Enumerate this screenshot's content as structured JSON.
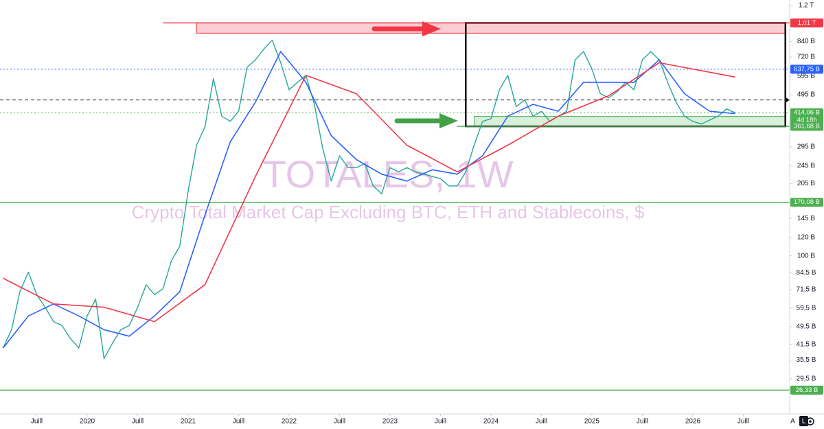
{
  "chart_data": {
    "type": "line",
    "title": "TOTALES, 1W",
    "subtitle": "Crypto Total Market Cap Excluding BTC, ETH and Stablecoins, $",
    "log_scale": true,
    "ylim": [
      20.8,
      1268
    ],
    "yticks": [
      {
        "value": 1200,
        "label": "1,2 T"
      },
      {
        "value": 840,
        "label": "840 B"
      },
      {
        "value": 720,
        "label": "720 B"
      },
      {
        "value": 595,
        "label": "595 B"
      },
      {
        "value": 495,
        "label": "495 B"
      },
      {
        "value": 295,
        "label": "295 B"
      },
      {
        "value": 245,
        "label": "245 B"
      },
      {
        "value": 205,
        "label": "205 B"
      },
      {
        "value": 145,
        "label": "145 B"
      },
      {
        "value": 120,
        "label": "120 B"
      },
      {
        "value": 100,
        "label": "100 B"
      },
      {
        "value": 84.5,
        "label": "84,5 B"
      },
      {
        "value": 71.5,
        "label": "71,5 B"
      },
      {
        "value": 59.5,
        "label": "59,5 B"
      },
      {
        "value": 49.5,
        "label": "49,5 B"
      },
      {
        "value": 41.5,
        "label": "41,5 B"
      },
      {
        "value": 35.5,
        "label": "35,5 B"
      },
      {
        "value": 29.5,
        "label": "29,5 B"
      }
    ],
    "xticks": [
      {
        "value": "2019-07",
        "label": "Juill"
      },
      {
        "value": "2020-01",
        "label": "2020"
      },
      {
        "value": "2020-07",
        "label": "Juill"
      },
      {
        "value": "2021-01",
        "label": "2021"
      },
      {
        "value": "2021-07",
        "label": "Juill"
      },
      {
        "value": "2022-01",
        "label": "2022"
      },
      {
        "value": "2022-07",
        "label": "Juill"
      },
      {
        "value": "2023-01",
        "label": "2023"
      },
      {
        "value": "2023-07",
        "label": "Juill"
      },
      {
        "value": "2024-01",
        "label": "2024"
      },
      {
        "value": "2024-07",
        "label": "Juill"
      },
      {
        "value": "2025-01",
        "label": "2025"
      },
      {
        "value": "2025-07",
        "label": "Juill"
      },
      {
        "value": "2026-01",
        "label": "2026"
      },
      {
        "value": "2026-07",
        "label": "Juill"
      }
    ],
    "series": [
      {
        "color": "#26a69a",
        "width": 1.4,
        "x": [
          "2019-03",
          "2019-04",
          "2019-05",
          "2019-06",
          "2019-07",
          "2019-08",
          "2019-09",
          "2019-10",
          "2019-11",
          "2019-12",
          "2020-01",
          "2020-02",
          "2020-03",
          "2020-04",
          "2020-05",
          "2020-06",
          "2020-07",
          "2020-08",
          "2020-09",
          "2020-10",
          "2020-11",
          "2020-12",
          "2021-01",
          "2021-02",
          "2021-03",
          "2021-04",
          "2021-05",
          "2021-06",
          "2021-07",
          "2021-08",
          "2021-09",
          "2021-10",
          "2021-11",
          "2021-12",
          "2022-01",
          "2022-02",
          "2022-03",
          "2022-04",
          "2022-05",
          "2022-06",
          "2022-07",
          "2022-08",
          "2022-09",
          "2022-10",
          "2022-11",
          "2022-12",
          "2023-01",
          "2023-02",
          "2023-03",
          "2023-04",
          "2023-05",
          "2023-06",
          "2023-07",
          "2023-08",
          "2023-09",
          "2023-10",
          "2023-11",
          "2023-12",
          "2024-01",
          "2024-02",
          "2024-03",
          "2024-04",
          "2024-05",
          "2024-06",
          "2024-07",
          "2024-08",
          "2024-09",
          "2024-10",
          "2024-11",
          "2024-12",
          "2025-01",
          "2025-02",
          "2025-03",
          "2025-04",
          "2025-05",
          "2025-06",
          "2025-07",
          "2025-08",
          "2025-09",
          "2025-10",
          "2025-11",
          "2025-12",
          "2026-01",
          "2026-02",
          "2026-03",
          "2026-04",
          "2026-05",
          "2026-06"
        ],
        "values": [
          40,
          48,
          70,
          85,
          68,
          60,
          52,
          50,
          44,
          40,
          55,
          65,
          36,
          42,
          48,
          50,
          60,
          75,
          68,
          72,
          95,
          110,
          190,
          300,
          360,
          580,
          400,
          380,
          420,
          650,
          700,
          780,
          850,
          680,
          520,
          560,
          600,
          450,
          290,
          210,
          270,
          240,
          240,
          250,
          200,
          185,
          240,
          230,
          240,
          230,
          225,
          220,
          215,
          200,
          200,
          230,
          300,
          380,
          390,
          520,
          600,
          440,
          470,
          400,
          420,
          380,
          400,
          420,
          700,
          760,
          640,
          500,
          480,
          510,
          560,
          520,
          700,
          760,
          700,
          560,
          460,
          400,
          380,
          370,
          385,
          400,
          430,
          414
        ]
      },
      {
        "color": "#2962ff",
        "width": 1.6,
        "x": [
          "2019-03",
          "2019-06",
          "2019-09",
          "2019-12",
          "2020-03",
          "2020-06",
          "2020-09",
          "2020-12",
          "2021-03",
          "2021-06",
          "2021-09",
          "2021-12",
          "2022-03",
          "2022-06",
          "2022-09",
          "2022-12",
          "2023-03",
          "2023-06",
          "2023-09",
          "2023-12",
          "2024-03",
          "2024-06",
          "2024-09",
          "2024-12",
          "2025-03",
          "2025-06",
          "2025-09",
          "2025-12",
          "2026-03",
          "2026-06"
        ],
        "values": [
          40,
          55,
          62,
          55,
          48,
          45,
          55,
          70,
          150,
          310,
          460,
          760,
          560,
          330,
          260,
          225,
          210,
          235,
          225,
          270,
          400,
          450,
          420,
          560,
          560,
          560,
          700,
          500,
          420,
          410
        ]
      },
      {
        "color": "#f23645",
        "width": 1.6,
        "x": [
          "2019-03",
          "2019-09",
          "2020-03",
          "2020-09",
          "2021-03",
          "2021-09",
          "2022-03",
          "2022-09",
          "2023-03",
          "2023-09",
          "2024-03",
          "2024-09",
          "2025-03",
          "2025-09",
          "2026-06"
        ],
        "values": [
          80,
          62,
          60,
          52,
          75,
          220,
          600,
          500,
          300,
          230,
          300,
          400,
          490,
          680,
          590
        ]
      }
    ],
    "levels": [
      {
        "value": 1010,
        "label": "1,01 T",
        "color": "#f23645",
        "style": "solid",
        "from": "2020-10"
      },
      {
        "value": 637.75,
        "label": "637,75 B",
        "color": "#2962ff",
        "style": "dotted",
        "from": "2019-02"
      },
      {
        "value": 470,
        "color": "#131722",
        "style": "dashed",
        "from": "2019-02"
      },
      {
        "value": 414.06,
        "label": "414,06 B",
        "sublabel": "4d 18h",
        "color": "#4caf50",
        "style": "dotted",
        "from": "2019-02"
      },
      {
        "value": 361.68,
        "label": "361,68 B",
        "color": "#4caf50",
        "style": "solid",
        "from": "2023-09"
      },
      {
        "value": 170.08,
        "label": "170,08 B",
        "color": "#4caf50",
        "style": "solid",
        "from": "2019-02"
      },
      {
        "value": 26.33,
        "label": "26,33 B",
        "color": "#4caf50",
        "style": "solid",
        "from": "2019-02"
      }
    ],
    "zones": [
      {
        "x": [
          "2021-02",
          "2026-12"
        ],
        "y": [
          912,
          1010
        ],
        "color": "#f8c8cc",
        "stroke": "#f23645"
      },
      {
        "x": [
          "2023-11",
          "2026-12"
        ],
        "y": [
          361.68,
          399
        ],
        "color": "#d4edd6",
        "stroke": "#4caf50"
      },
      {
        "x": [
          "2023-10",
          "2026-12"
        ],
        "y": [
          361.68,
          1010
        ],
        "color": "none",
        "stroke": "#000"
      }
    ],
    "buttons": [
      "A",
      "L"
    ]
  }
}
